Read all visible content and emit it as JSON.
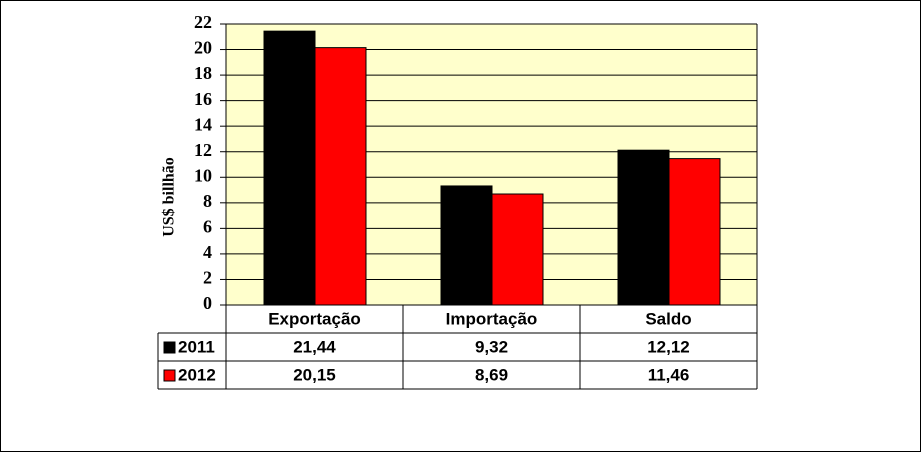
{
  "chart_data": {
    "type": "bar",
    "y_label": "US$ billhão",
    "categories": [
      "Exportação",
      "Importação",
      "Saldo"
    ],
    "series": [
      {
        "name": "2011",
        "color": "#000000",
        "values": [
          21.44,
          9.32,
          12.12
        ],
        "value_labels": [
          "21,44",
          "9,32",
          "12,12"
        ]
      },
      {
        "name": "2012",
        "color": "#ff0000",
        "values": [
          20.15,
          8.69,
          11.46
        ],
        "value_labels": [
          "20,15",
          "8,69",
          "11,46"
        ]
      }
    ],
    "ylim": [
      0,
      22
    ],
    "yticks": [
      0,
      2,
      4,
      6,
      8,
      10,
      12,
      14,
      16,
      18,
      20,
      22
    ],
    "grid": true,
    "plot_background": "#ffffcc"
  }
}
